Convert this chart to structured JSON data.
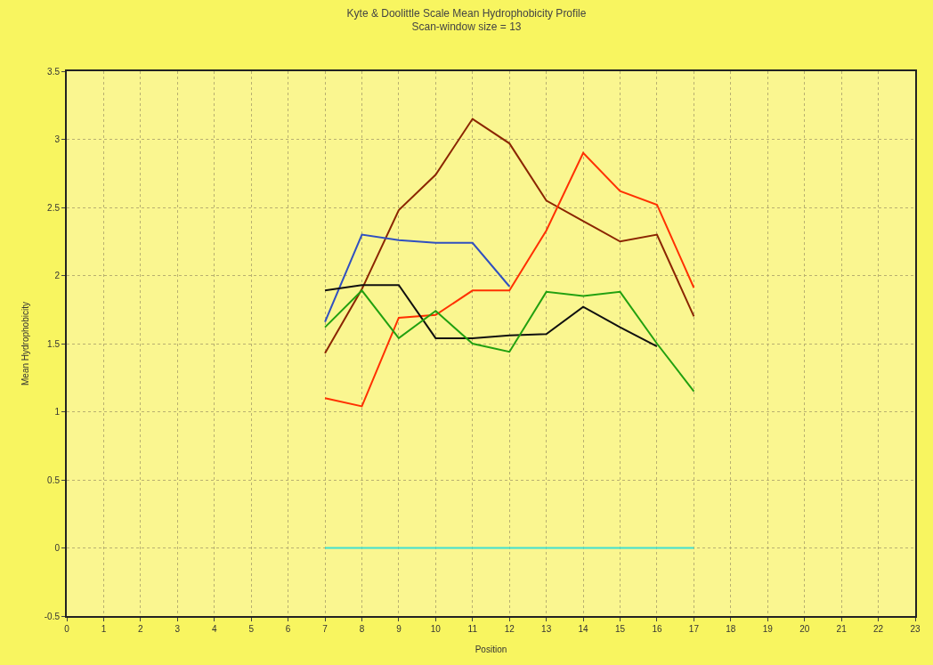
{
  "chart_data": {
    "type": "line",
    "title": "Kyte & Doolittle Scale Mean Hydrophobicity Profile",
    "subtitle": "Scan-window size = 13",
    "xlabel": "Position",
    "ylabel": "Mean Hydrophobicity",
    "x": [
      7,
      8,
      9,
      10,
      11,
      12,
      13,
      14,
      15,
      16,
      17
    ],
    "series": [
      {
        "color": "#8b2500",
        "values": [
          1.43,
          1.9,
          2.48,
          2.74,
          3.15,
          2.97,
          2.55,
          2.4,
          2.25,
          2.3,
          1.7
        ]
      },
      {
        "color": "#ff3000",
        "values": [
          1.1,
          1.04,
          1.69,
          1.71,
          1.89,
          1.89,
          2.33,
          2.9,
          2.62,
          2.52,
          1.91
        ]
      },
      {
        "color": "#3050c0",
        "values": [
          1.66,
          2.3,
          2.26,
          2.24,
          2.24,
          1.92,
          null,
          null,
          null,
          null,
          null
        ]
      },
      {
        "color": "#101010",
        "values": [
          1.89,
          1.93,
          1.93,
          1.54,
          1.54,
          1.56,
          1.57,
          1.77,
          1.62,
          1.48,
          null
        ]
      },
      {
        "color": "#22a010",
        "values": [
          1.62,
          1.89,
          1.54,
          1.74,
          1.5,
          1.44,
          1.88,
          1.85,
          1.88,
          1.5,
          1.15
        ]
      },
      {
        "color": "#40e0d0",
        "values": [
          0,
          0,
          0,
          0,
          0,
          0,
          0,
          0,
          0,
          0,
          0
        ]
      }
    ],
    "xlim": [
      0,
      23
    ],
    "xticks": [
      0,
      1,
      2,
      3,
      4,
      5,
      6,
      7,
      8,
      9,
      10,
      11,
      12,
      13,
      14,
      15,
      16,
      17,
      18,
      19,
      20,
      21,
      22,
      23
    ],
    "ylim": [
      -0.5,
      3.5
    ],
    "yticks": [
      -0.5,
      0,
      0.5,
      1,
      1.5,
      2,
      2.5,
      3,
      3.5
    ],
    "grid": true,
    "marker": "none",
    "line_style": "solid"
  }
}
